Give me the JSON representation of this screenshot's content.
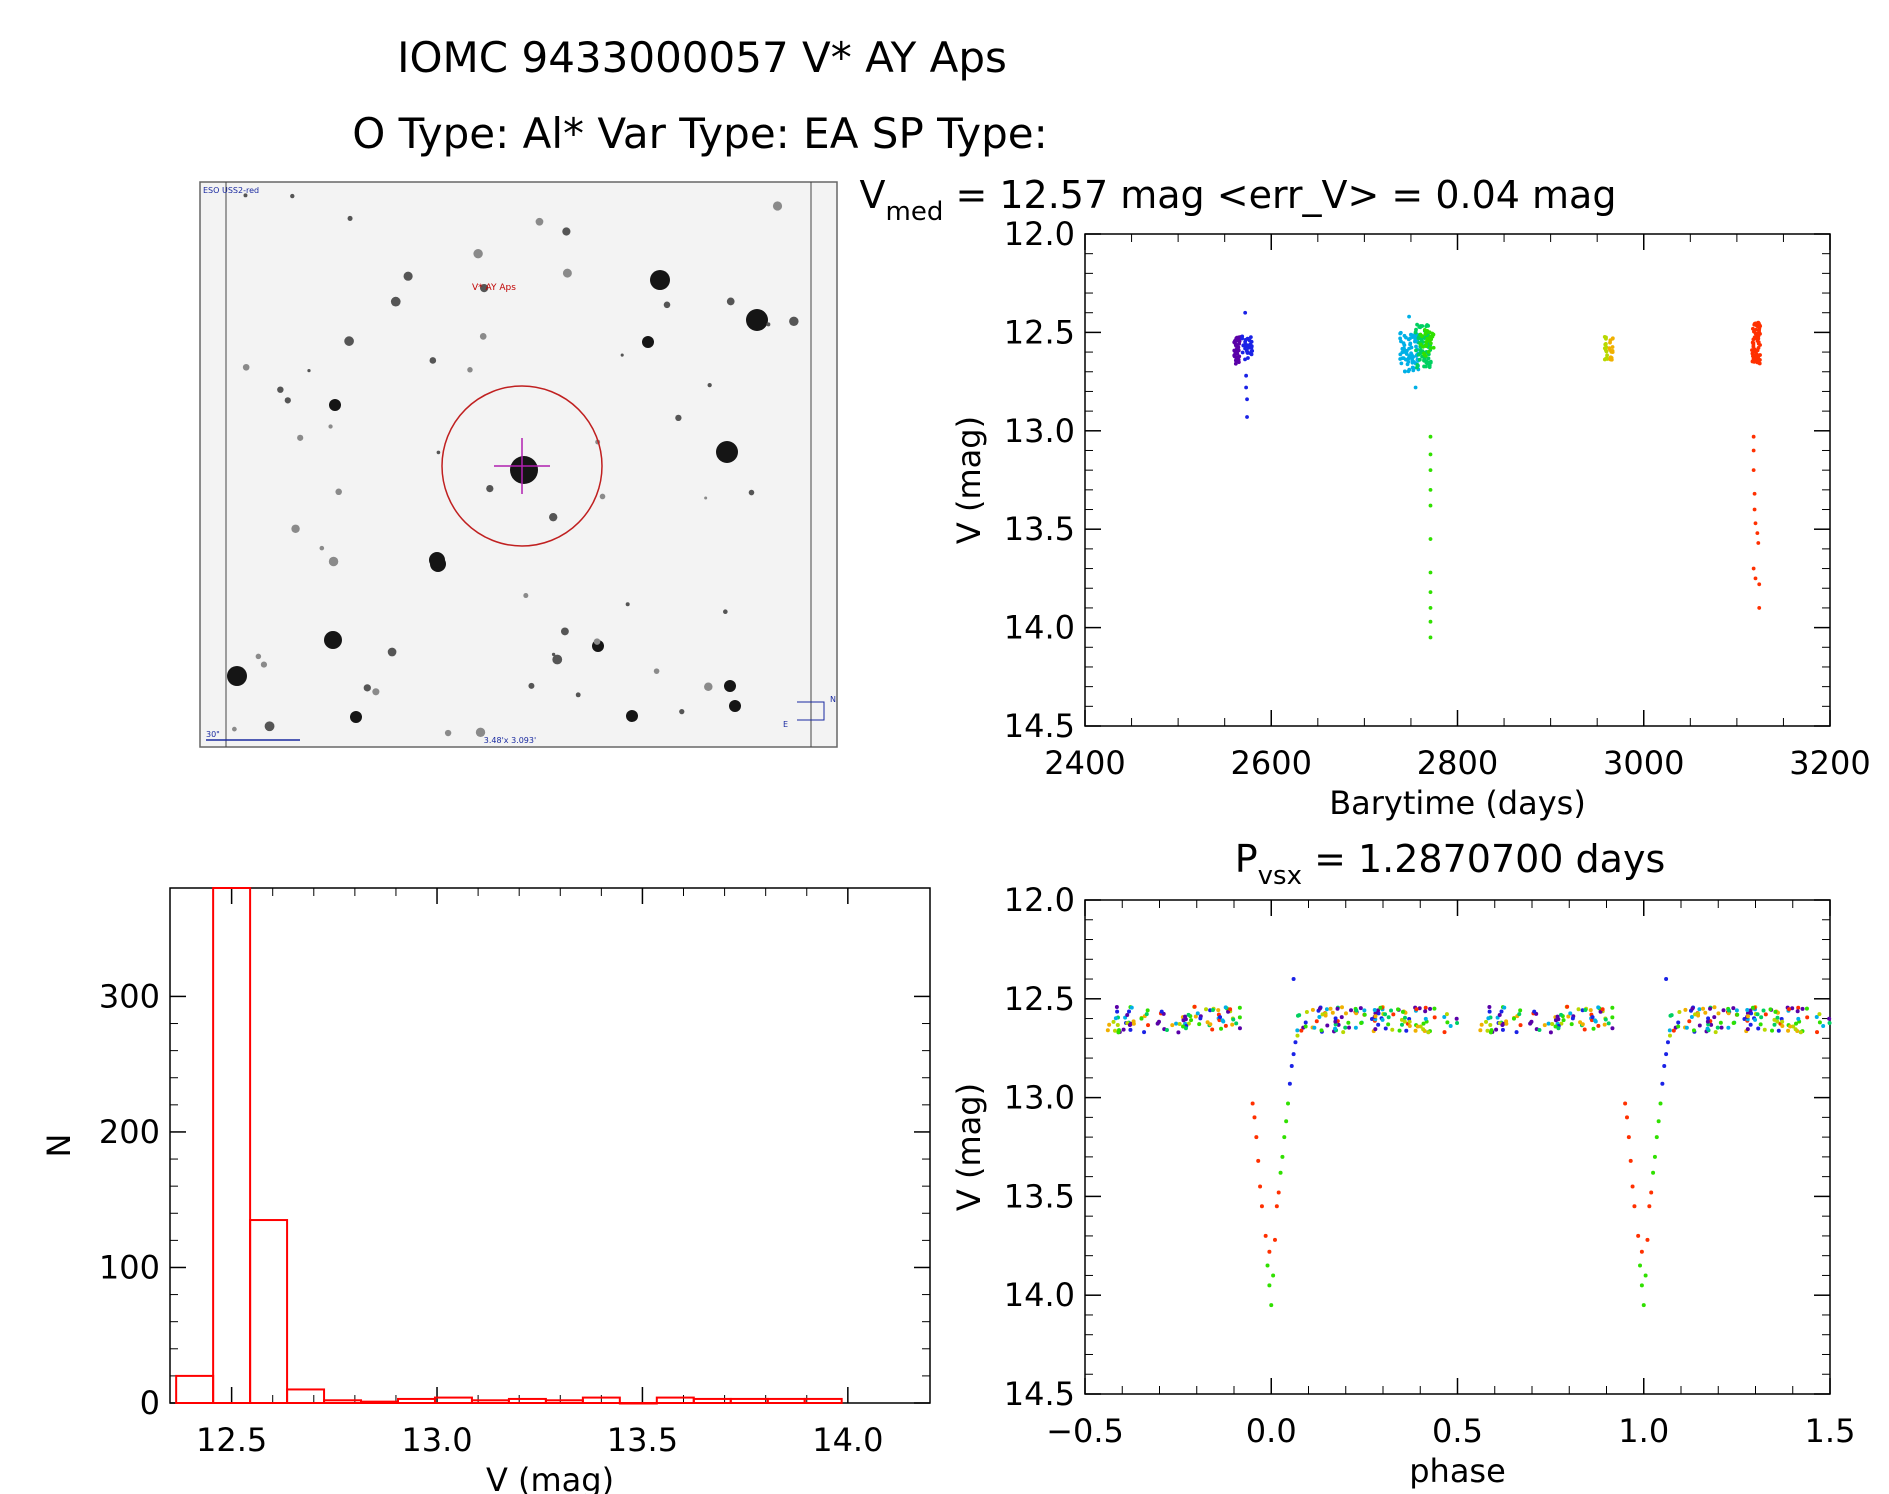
{
  "header": {
    "line1": "IOMC 9433000057   V* AY Aps",
    "line2": "O Type: Al*  Var Type: EA  SP Type:"
  },
  "thumbnail": {
    "survey_label": "ESO USS2-red",
    "target_label": "V* AY Aps",
    "scale_label": "30\"",
    "fov_label": "3.48'x 3.093'",
    "compass_n": "N",
    "compass_e": "E"
  },
  "colors": {
    "axis": "#000000",
    "histogram": "#ff0000",
    "marker": "#cc0000"
  },
  "chart_data": [
    {
      "id": "lightcurve",
      "type": "scatter",
      "title_parts": [
        "V",
        "med",
        " = 12.57 mag <err_V> = 0.04 mag"
      ],
      "xlabel": "Barytime (days)",
      "ylabel": "V (mag)",
      "xlim": [
        2400,
        3200
      ],
      "ylim": [
        14.5,
        12.0
      ],
      "xticks": [
        2400,
        2600,
        2800,
        3000,
        3200
      ],
      "yticks": [
        12.0,
        12.5,
        13.0,
        13.5,
        14.0,
        14.5
      ],
      "groups": [
        {
          "color": "#5a00a8",
          "x_range": [
            2560,
            2567
          ],
          "y_range": [
            12.52,
            12.66
          ],
          "count": 40,
          "dip": []
        },
        {
          "color": "#1a22e6",
          "x_range": [
            2568,
            2580
          ],
          "y_range": [
            12.52,
            12.64
          ],
          "count": 30,
          "dip": [
            [
              2572,
              12.4
            ],
            [
              2573,
              12.72
            ],
            [
              2573,
              12.78
            ],
            [
              2574,
              12.84
            ],
            [
              2574,
              12.93
            ]
          ]
        },
        {
          "color": "#00b0e6",
          "x_range": [
            2738,
            2758
          ],
          "y_range": [
            12.5,
            12.7
          ],
          "count": 70,
          "dip": [
            [
              2748,
              12.42
            ],
            [
              2755,
              12.78
            ]
          ]
        },
        {
          "color": "#00d060",
          "x_range": [
            2755,
            2772
          ],
          "y_range": [
            12.46,
            12.68
          ],
          "count": 70,
          "dip": []
        },
        {
          "color": "#30e000",
          "x_range": [
            2760,
            2775
          ],
          "y_range": [
            12.48,
            12.62
          ],
          "count": 30,
          "dip": [
            [
              2771,
              13.03
            ],
            [
              2771,
              13.12
            ],
            [
              2771,
              13.2
            ],
            [
              2771,
              13.3
            ],
            [
              2771,
              13.38
            ],
            [
              2771,
              13.55
            ],
            [
              2771,
              13.72
            ],
            [
              2771,
              13.82
            ],
            [
              2771,
              13.9
            ],
            [
              2771,
              13.97
            ],
            [
              2771,
              14.05
            ]
          ]
        },
        {
          "color": "#b8d800",
          "x_range": [
            2958,
            2961
          ],
          "y_range": [
            12.52,
            12.64
          ],
          "count": 15,
          "dip": []
        },
        {
          "color": "#f0b000",
          "x_range": [
            2963,
            2967
          ],
          "y_range": [
            12.52,
            12.64
          ],
          "count": 15,
          "dip": []
        },
        {
          "color": "#ff3000",
          "x_range": [
            3116,
            3125
          ],
          "y_range": [
            12.44,
            12.66
          ],
          "count": 70,
          "dip": [
            [
              3118,
              13.03
            ],
            [
              3118,
              13.1
            ],
            [
              3118,
              13.2
            ],
            [
              3119,
              13.32
            ],
            [
              3119,
              13.4
            ],
            [
              3120,
              13.47
            ],
            [
              3122,
              13.52
            ],
            [
              3123,
              13.57
            ],
            [
              3118,
              13.7
            ],
            [
              3120,
              13.75
            ],
            [
              3124,
              13.78
            ],
            [
              3124,
              13.9
            ]
          ]
        }
      ]
    },
    {
      "id": "histogram",
      "type": "bar",
      "xlabel": "V (mag)",
      "ylabel": "N",
      "xlim": [
        12.35,
        14.2
      ],
      "ylim": [
        0,
        380
      ],
      "xticks": [
        12.5,
        13.0,
        13.5,
        14.0
      ],
      "yticks": [
        0,
        100,
        200,
        300
      ],
      "bin_width": 0.09,
      "bins": [
        {
          "x": 12.41,
          "n": 20
        },
        {
          "x": 12.5,
          "n": 380
        },
        {
          "x": 12.59,
          "n": 135
        },
        {
          "x": 12.68,
          "n": 10
        },
        {
          "x": 12.77,
          "n": 2
        },
        {
          "x": 12.86,
          "n": 1
        },
        {
          "x": 12.95,
          "n": 3
        },
        {
          "x": 13.04,
          "n": 4
        },
        {
          "x": 13.13,
          "n": 2
        },
        {
          "x": 13.22,
          "n": 3
        },
        {
          "x": 13.31,
          "n": 2
        },
        {
          "x": 13.4,
          "n": 4
        },
        {
          "x": 13.49,
          "n": 0
        },
        {
          "x": 13.58,
          "n": 4
        },
        {
          "x": 13.67,
          "n": 3
        },
        {
          "x": 13.76,
          "n": 3
        },
        {
          "x": 13.85,
          "n": 3
        },
        {
          "x": 13.94,
          "n": 3
        }
      ]
    },
    {
      "id": "phased",
      "type": "scatter",
      "title_parts": [
        "P",
        "vsx",
        " = 1.2870700 days"
      ],
      "xlabel": "phase",
      "ylabel": "V (mag)",
      "xlim": [
        -0.5,
        1.5
      ],
      "ylim": [
        14.5,
        12.0
      ],
      "xticks": [
        -0.5,
        0.0,
        0.5,
        1.0,
        1.5
      ],
      "xtick_labels": [
        "−0.5",
        "0.0",
        "0.5",
        "1.0",
        "1.5"
      ],
      "yticks": [
        12.0,
        12.5,
        13.0,
        13.5,
        14.0,
        14.5
      ],
      "colors": [
        "#5a00a8",
        "#1a22e6",
        "#00b0e6",
        "#00d060",
        "#30e000",
        "#b8d800",
        "#f0b000",
        "#ff3000"
      ],
      "eclipse_points": [
        {
          "phase": -0.05,
          "v": 13.03,
          "color": "#ff3000"
        },
        {
          "phase": -0.045,
          "v": 13.1,
          "color": "#ff3000"
        },
        {
          "phase": -0.04,
          "v": 13.2,
          "color": "#ff3000"
        },
        {
          "phase": -0.035,
          "v": 13.32,
          "color": "#ff3000"
        },
        {
          "phase": -0.03,
          "v": 13.45,
          "color": "#ff3000"
        },
        {
          "phase": -0.025,
          "v": 13.55,
          "color": "#ff3000"
        },
        {
          "phase": -0.015,
          "v": 13.7,
          "color": "#ff3000"
        },
        {
          "phase": -0.005,
          "v": 13.78,
          "color": "#ff3000"
        },
        {
          "phase": -0.01,
          "v": 13.85,
          "color": "#30e000"
        },
        {
          "phase": -0.005,
          "v": 13.95,
          "color": "#30e000"
        },
        {
          "phase": 0.0,
          "v": 14.05,
          "color": "#30e000"
        },
        {
          "phase": 0.005,
          "v": 13.9,
          "color": "#30e000"
        },
        {
          "phase": 0.01,
          "v": 13.72,
          "color": "#ff3000"
        },
        {
          "phase": 0.015,
          "v": 13.55,
          "color": "#ff3000"
        },
        {
          "phase": 0.02,
          "v": 13.48,
          "color": "#ff3000"
        },
        {
          "phase": 0.025,
          "v": 13.38,
          "color": "#30e000"
        },
        {
          "phase": 0.03,
          "v": 13.3,
          "color": "#30e000"
        },
        {
          "phase": 0.035,
          "v": 13.2,
          "color": "#30e000"
        },
        {
          "phase": 0.04,
          "v": 13.12,
          "color": "#30e000"
        },
        {
          "phase": 0.045,
          "v": 13.03,
          "color": "#30e000"
        },
        {
          "phase": 0.05,
          "v": 12.93,
          "color": "#1a22e6"
        },
        {
          "phase": 0.055,
          "v": 12.84,
          "color": "#1a22e6"
        },
        {
          "phase": 0.06,
          "v": 12.78,
          "color": "#1a22e6"
        },
        {
          "phase": 0.065,
          "v": 12.72,
          "color": "#1a22e6"
        },
        {
          "phase": 0.07,
          "v": 12.66,
          "color": "#00b0e6"
        },
        {
          "phase": 0.06,
          "v": 12.4,
          "color": "#1a22e6"
        }
      ]
    }
  ]
}
